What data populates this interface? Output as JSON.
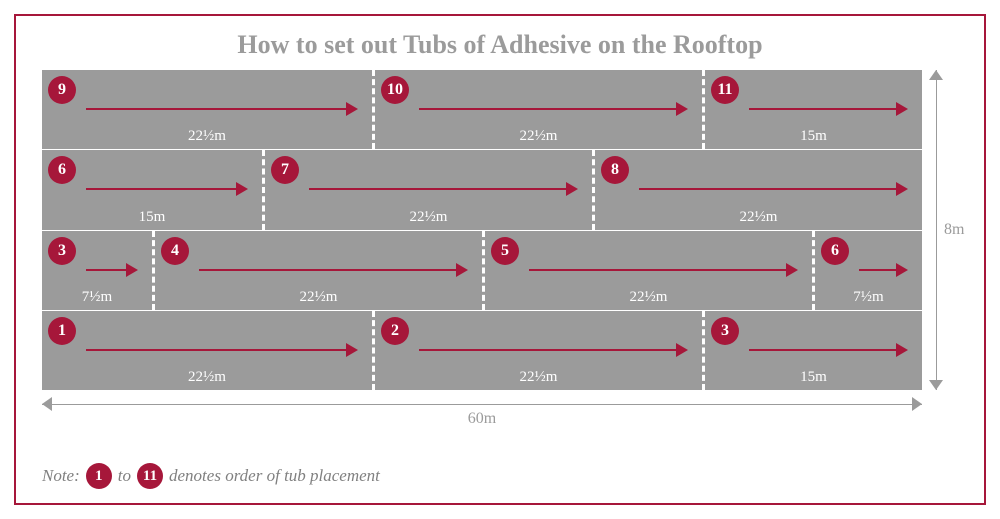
{
  "title": "How to set out Tubs of Adhesive on the Rooftop",
  "title_fontsize": 26,
  "colors": {
    "accent": "#a6173a",
    "segment_bg": "#9b9b9b",
    "dim": "#9b9b9b",
    "title": "#9b9b9b",
    "note": "#808080"
  },
  "total_width_label": "60m",
  "total_height_label": "8m",
  "total_width_value": 60,
  "rows": [
    {
      "segments": [
        {
          "num": "9",
          "length": 22.5,
          "label": "22½m"
        },
        {
          "num": "10",
          "length": 22.5,
          "label": "22½m"
        },
        {
          "num": "11",
          "length": 15,
          "label": "15m"
        }
      ]
    },
    {
      "segments": [
        {
          "num": "6",
          "length": 15,
          "label": "15m"
        },
        {
          "num": "7",
          "length": 22.5,
          "label": "22½m"
        },
        {
          "num": "8",
          "length": 22.5,
          "label": "22½m"
        }
      ]
    },
    {
      "segments": [
        {
          "num": "3",
          "length": 7.5,
          "label": "7½m"
        },
        {
          "num": "4",
          "length": 22.5,
          "label": "22½m"
        },
        {
          "num": "5",
          "length": 22.5,
          "label": "22½m"
        },
        {
          "num": "6",
          "length": 7.5,
          "label": "7½m"
        }
      ]
    },
    {
      "segments": [
        {
          "num": "1",
          "length": 22.5,
          "label": "22½m"
        },
        {
          "num": "2",
          "length": 22.5,
          "label": "22½m"
        },
        {
          "num": "3",
          "length": 15,
          "label": "15m"
        }
      ]
    }
  ],
  "note": {
    "prefix": "Note:",
    "from": "1",
    "mid": "to",
    "to": "11",
    "suffix": "denotes order of tub placement"
  }
}
